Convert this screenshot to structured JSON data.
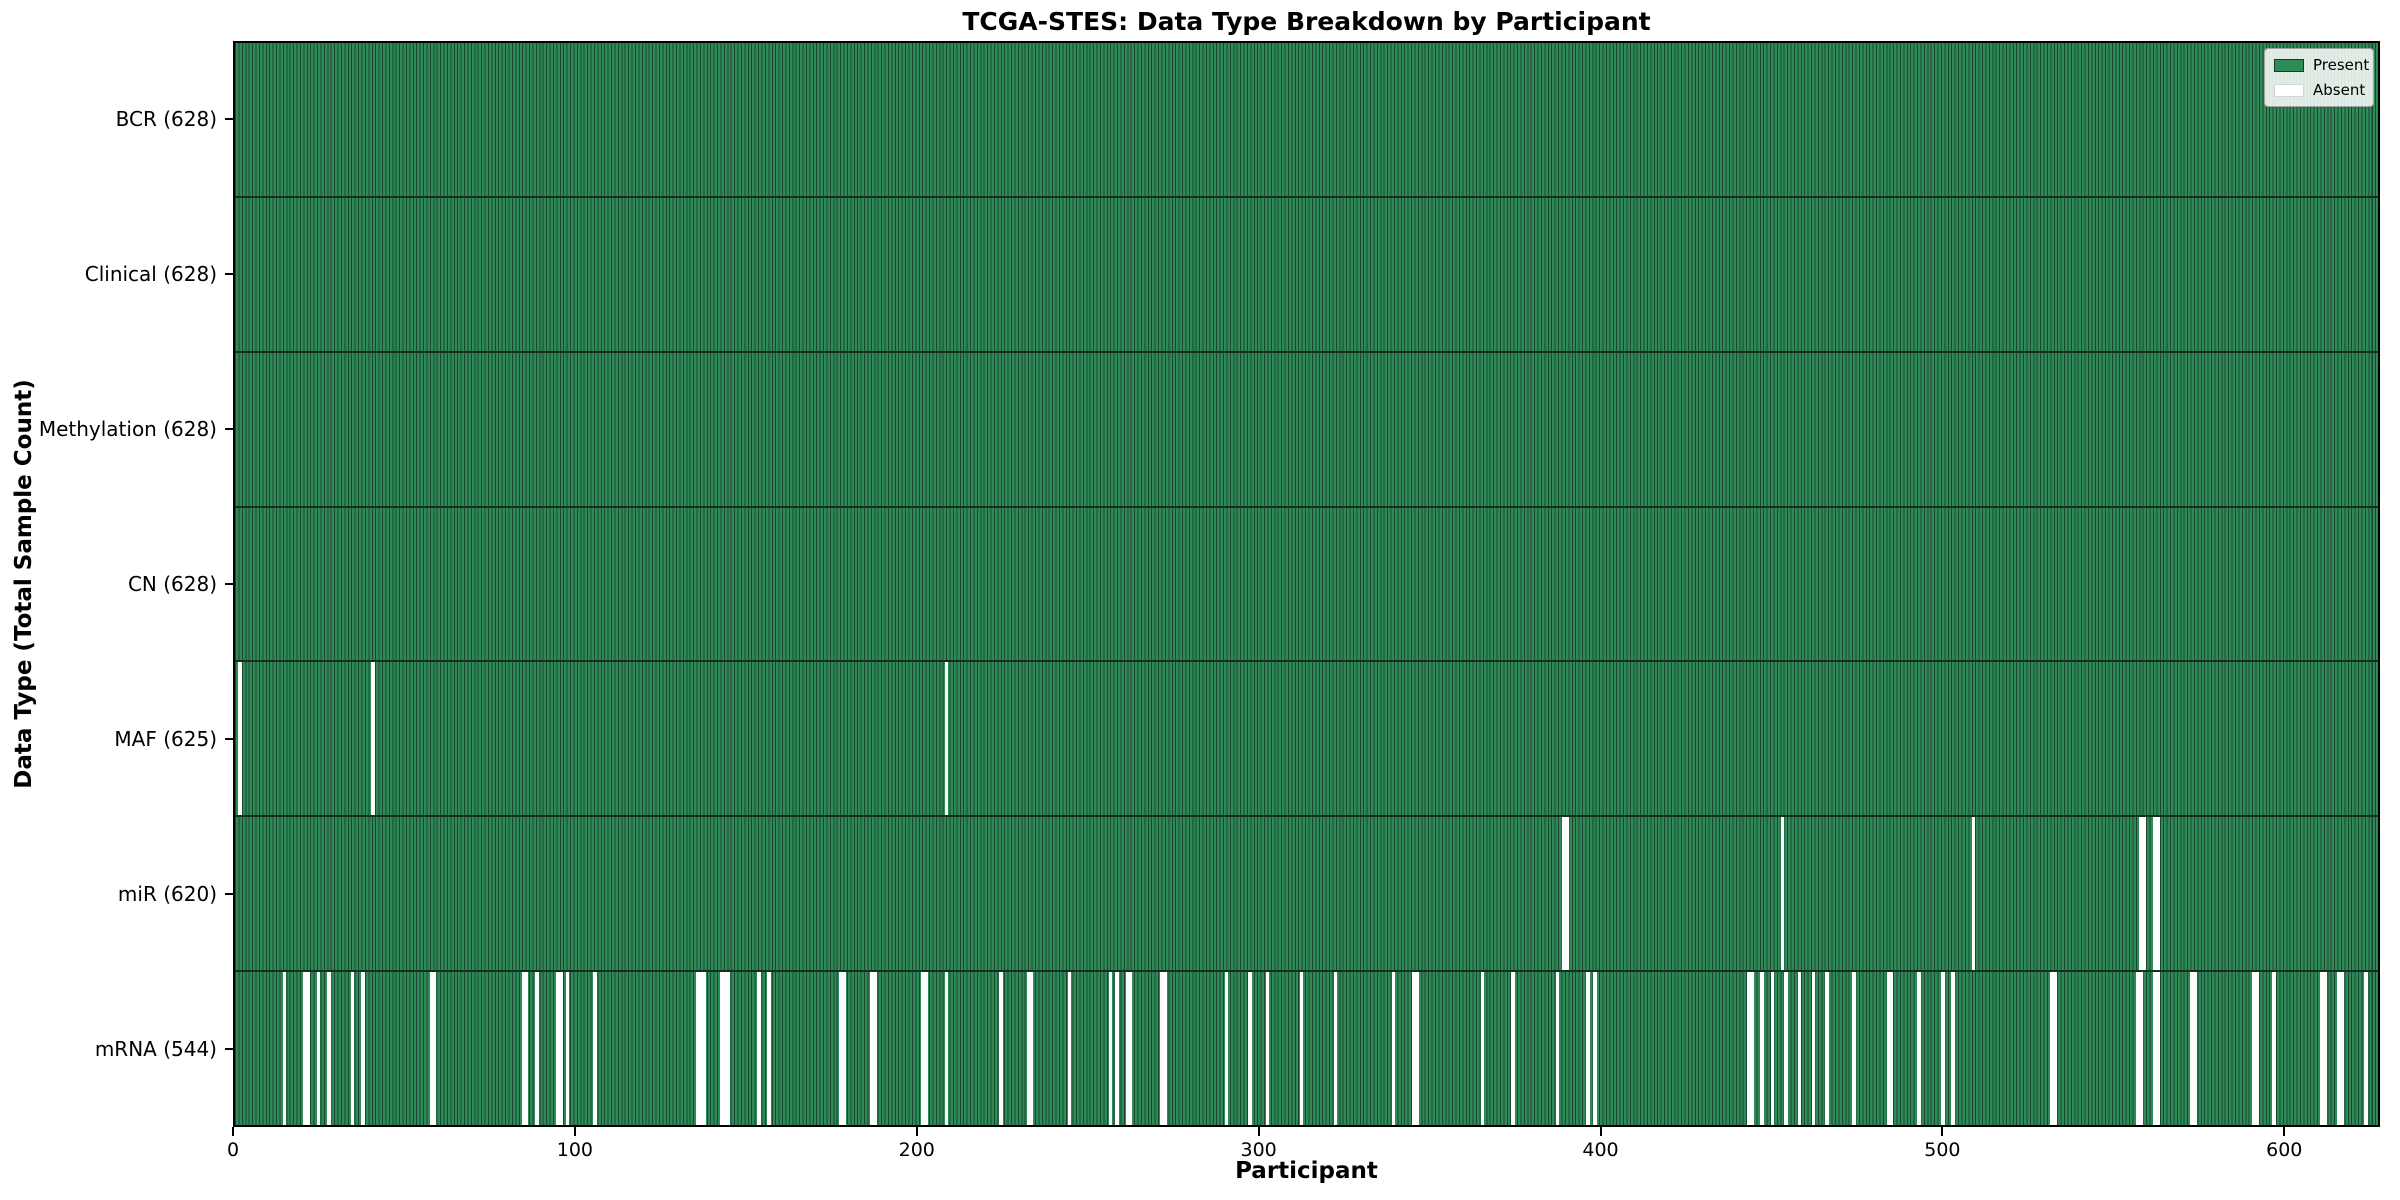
{
  "chart_data": {
    "type": "heatmap",
    "title": "TCGA-STES: Data Type Breakdown by Participant",
    "xlabel": "Participant",
    "ylabel": "Data Type (Total Sample Count)",
    "n_participants": 628,
    "xlim": [
      0,
      628
    ],
    "x_ticks": [
      0,
      100,
      200,
      300,
      400,
      500,
      600
    ],
    "grid": false,
    "legend": {
      "position": "upper right",
      "items": [
        {
          "label": "Present",
          "color": "#2e8b57"
        },
        {
          "label": "Absent",
          "color": "#ffffff"
        }
      ]
    },
    "colors": {
      "present_fill": "#2e8b57",
      "bar_edge": "#1b4730",
      "absent_fill": "#ffffff",
      "row_divider": "#13301f",
      "axis": "#000000"
    },
    "rows": [
      {
        "label": "BCR (628)",
        "data_type": "BCR",
        "present_count": 628,
        "absent_count": 0,
        "absent_participants": []
      },
      {
        "label": "Clinical (628)",
        "data_type": "Clinical",
        "present_count": 628,
        "absent_count": 0,
        "absent_participants": []
      },
      {
        "label": "Methylation (628)",
        "data_type": "Methylation",
        "present_count": 628,
        "absent_count": 0,
        "absent_participants": []
      },
      {
        "label": "CN (628)",
        "data_type": "CN",
        "present_count": 628,
        "absent_count": 0,
        "absent_participants": []
      },
      {
        "label": "MAF (625)",
        "data_type": "MAF",
        "present_count": 625,
        "absent_count": 3,
        "absent_participants": [
          1,
          40,
          208
        ]
      },
      {
        "label": "miR (620)",
        "data_type": "miR",
        "present_count": 620,
        "absent_count": 8,
        "absent_participants": [
          389,
          390,
          453,
          509,
          558,
          559,
          562,
          563
        ]
      },
      {
        "label": "mRNA (544)",
        "data_type": "mRNA",
        "present_count": 544,
        "absent_count": 84,
        "absent_participants": [
          14,
          20,
          21,
          24,
          27,
          34,
          37,
          57,
          58,
          84,
          85,
          88,
          94,
          95,
          97,
          105,
          135,
          136,
          137,
          142,
          143,
          144,
          153,
          156,
          177,
          178,
          186,
          187,
          201,
          202,
          208,
          224,
          232,
          233,
          244,
          256,
          258,
          261,
          262,
          271,
          272,
          290,
          297,
          302,
          312,
          322,
          339,
          345,
          346,
          365,
          374,
          387,
          396,
          398,
          443,
          444,
          447,
          450,
          454,
          458,
          462,
          466,
          474,
          484,
          485,
          493,
          500,
          503,
          532,
          533,
          557,
          558,
          562,
          563,
          573,
          574,
          591,
          592,
          597,
          611,
          612,
          616,
          617,
          624
        ]
      }
    ]
  }
}
